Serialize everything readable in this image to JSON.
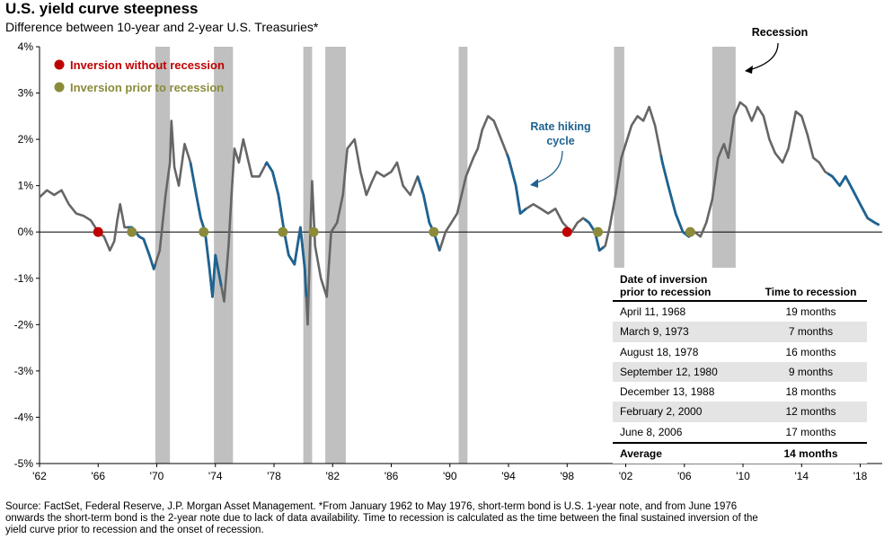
{
  "header": {
    "title": "U.S. yield curve steepness",
    "subtitle": "Difference between 10-year and 2-year U.S. Treasuries*"
  },
  "chart_data": {
    "type": "line",
    "x_unit": "year",
    "xlim": [
      1962,
      2019.5
    ],
    "ylim": [
      -5,
      4
    ],
    "y_ticks": [
      4,
      3,
      2,
      1,
      0,
      -1,
      -2,
      -3,
      -4,
      -5
    ],
    "y_tick_labels": [
      "4%",
      "3%",
      "2%",
      "1%",
      "0%",
      "-1%",
      "-2%",
      "-3%",
      "-4%",
      "-5%"
    ],
    "x_ticks": [
      1962,
      1966,
      1970,
      1974,
      1978,
      1982,
      1986,
      1990,
      1994,
      1998,
      2002,
      2006,
      2010,
      2014,
      2018
    ],
    "x_tick_labels": [
      "'62",
      "'66",
      "'70",
      "'74",
      "'78",
      "'82",
      "'86",
      "'90",
      "'94",
      "'98",
      "'02",
      "'06",
      "'10",
      "'14",
      "'18"
    ],
    "recessions": [
      [
        1969.9,
        1970.9
      ],
      [
        1973.9,
        1975.2
      ],
      [
        1980.0,
        1980.6
      ],
      [
        1981.5,
        1982.9
      ],
      [
        1990.6,
        1991.2
      ],
      [
        2001.2,
        2001.9
      ],
      [
        2007.9,
        2009.5
      ]
    ],
    "colors": {
      "line": "#666666",
      "hiking": "#1f6391",
      "recession": "#c0c0c0",
      "inversion_without": "#c00000",
      "inversion_prior": "#8b8b3a"
    },
    "series": [
      {
        "values": [
          [
            1962.0,
            0.75
          ],
          [
            1962.5,
            0.9
          ],
          [
            1963.0,
            0.8
          ],
          [
            1963.5,
            0.9
          ],
          [
            1964.0,
            0.6
          ],
          [
            1964.5,
            0.4
          ],
          [
            1965.0,
            0.35
          ],
          [
            1965.5,
            0.25
          ],
          [
            1966.0,
            0.0
          ],
          [
            1966.4,
            -0.1
          ],
          [
            1966.8,
            -0.4
          ],
          [
            1967.1,
            -0.2
          ],
          [
            1967.3,
            0.25
          ],
          [
            1967.5,
            0.6
          ],
          [
            1967.8,
            0.1
          ],
          [
            1968.3,
            0.1
          ],
          [
            1968.8,
            -0.1
          ],
          [
            1969.1,
            -0.15
          ],
          [
            1969.5,
            -0.5
          ],
          [
            1969.8,
            -0.8
          ],
          [
            1970.2,
            -0.4
          ],
          [
            1970.6,
            0.8
          ],
          [
            1970.9,
            1.5
          ],
          [
            1971.0,
            2.4
          ],
          [
            1971.2,
            1.4
          ],
          [
            1971.5,
            1.0
          ],
          [
            1971.9,
            1.9
          ],
          [
            1972.3,
            1.5
          ],
          [
            1972.7,
            0.8
          ],
          [
            1973.0,
            0.3
          ],
          [
            1973.3,
            0.0
          ],
          [
            1973.6,
            -0.8
          ],
          [
            1973.8,
            -1.4
          ],
          [
            1974.0,
            -0.5
          ],
          [
            1974.3,
            -1.0
          ],
          [
            1974.6,
            -1.5
          ],
          [
            1974.9,
            -0.3
          ],
          [
            1975.1,
            0.8
          ],
          [
            1975.3,
            1.8
          ],
          [
            1975.6,
            1.5
          ],
          [
            1975.9,
            2.0
          ],
          [
            1976.2,
            1.6
          ],
          [
            1976.5,
            1.2
          ],
          [
            1977.0,
            1.2
          ],
          [
            1977.5,
            1.5
          ],
          [
            1977.9,
            1.3
          ],
          [
            1978.3,
            0.8
          ],
          [
            1978.7,
            0.0
          ],
          [
            1979.0,
            -0.5
          ],
          [
            1979.4,
            -0.7
          ],
          [
            1979.8,
            0.1
          ],
          [
            1980.1,
            -0.8
          ],
          [
            1980.3,
            -2.0
          ],
          [
            1980.5,
            0.2
          ],
          [
            1980.6,
            1.1
          ],
          [
            1980.8,
            -0.3
          ],
          [
            1981.2,
            -1.0
          ],
          [
            1981.6,
            -1.4
          ],
          [
            1981.9,
            0.0
          ],
          [
            1982.3,
            0.2
          ],
          [
            1982.7,
            0.8
          ],
          [
            1983.0,
            1.8
          ],
          [
            1983.5,
            2.0
          ],
          [
            1983.9,
            1.3
          ],
          [
            1984.3,
            0.8
          ],
          [
            1984.7,
            1.1
          ],
          [
            1985.0,
            1.3
          ],
          [
            1985.5,
            1.2
          ],
          [
            1986.0,
            1.3
          ],
          [
            1986.4,
            1.5
          ],
          [
            1986.8,
            1.0
          ],
          [
            1987.3,
            0.8
          ],
          [
            1987.8,
            1.2
          ],
          [
            1988.2,
            0.8
          ],
          [
            1988.6,
            0.2
          ],
          [
            1988.9,
            0.0
          ],
          [
            1989.3,
            -0.4
          ],
          [
            1989.7,
            0.0
          ],
          [
            1990.1,
            0.2
          ],
          [
            1990.5,
            0.4
          ],
          [
            1990.8,
            0.8
          ],
          [
            1991.1,
            1.2
          ],
          [
            1991.6,
            1.6
          ],
          [
            1991.9,
            1.8
          ],
          [
            1992.2,
            2.2
          ],
          [
            1992.6,
            2.5
          ],
          [
            1993.0,
            2.4
          ],
          [
            1993.5,
            2.0
          ],
          [
            1994.0,
            1.6
          ],
          [
            1994.5,
            1.0
          ],
          [
            1994.8,
            0.4
          ],
          [
            1995.2,
            0.5
          ],
          [
            1995.7,
            0.6
          ],
          [
            1996.2,
            0.5
          ],
          [
            1996.7,
            0.4
          ],
          [
            1997.2,
            0.5
          ],
          [
            1997.7,
            0.2
          ],
          [
            1998.0,
            0.1
          ],
          [
            1998.3,
            0.0
          ],
          [
            1998.7,
            0.2
          ],
          [
            1999.1,
            0.3
          ],
          [
            1999.5,
            0.2
          ],
          [
            1999.9,
            0.0
          ],
          [
            2000.2,
            -0.4
          ],
          [
            2000.6,
            -0.3
          ],
          [
            2000.9,
            0.1
          ],
          [
            2001.3,
            0.8
          ],
          [
            2001.7,
            1.6
          ],
          [
            2002.0,
            1.9
          ],
          [
            2002.4,
            2.3
          ],
          [
            2002.8,
            2.5
          ],
          [
            2003.2,
            2.4
          ],
          [
            2003.6,
            2.7
          ],
          [
            2004.0,
            2.3
          ],
          [
            2004.5,
            1.5
          ],
          [
            2004.9,
            1.0
          ],
          [
            2005.4,
            0.4
          ],
          [
            2005.9,
            0.0
          ],
          [
            2006.3,
            -0.1
          ],
          [
            2006.7,
            0.0
          ],
          [
            2007.1,
            -0.1
          ],
          [
            2007.5,
            0.2
          ],
          [
            2007.9,
            0.7
          ],
          [
            2008.3,
            1.6
          ],
          [
            2008.7,
            1.9
          ],
          [
            2009.0,
            1.6
          ],
          [
            2009.4,
            2.5
          ],
          [
            2009.8,
            2.8
          ],
          [
            2010.2,
            2.7
          ],
          [
            2010.6,
            2.4
          ],
          [
            2011.0,
            2.7
          ],
          [
            2011.4,
            2.5
          ],
          [
            2011.8,
            2.0
          ],
          [
            2012.2,
            1.7
          ],
          [
            2012.7,
            1.5
          ],
          [
            2013.1,
            1.8
          ],
          [
            2013.6,
            2.6
          ],
          [
            2014.0,
            2.5
          ],
          [
            2014.4,
            2.1
          ],
          [
            2014.8,
            1.6
          ],
          [
            2015.2,
            1.5
          ],
          [
            2015.6,
            1.3
          ],
          [
            2016.1,
            1.2
          ],
          [
            2016.6,
            1.0
          ],
          [
            2017.0,
            1.2
          ],
          [
            2017.5,
            0.9
          ],
          [
            2018.0,
            0.6
          ],
          [
            2018.5,
            0.3
          ],
          [
            2019.0,
            0.2
          ],
          [
            2019.3,
            0.15
          ]
        ]
      }
    ],
    "hiking_segments": [
      [
        1968.0,
        1969.9
      ],
      [
        1972.3,
        1974.4
      ],
      [
        1977.4,
        1980.2
      ],
      [
        1987.8,
        1989.3
      ],
      [
        1993.9,
        1995.2
      ],
      [
        1999.2,
        2000.5
      ],
      [
        2004.4,
        2006.6
      ],
      [
        2015.8,
        2019.3
      ]
    ],
    "inversion_without_recession": [
      [
        1966.0,
        0.0
      ],
      [
        1998.0,
        0.0
      ]
    ],
    "inversion_prior_to_recession": [
      [
        1968.3,
        0.0
      ],
      [
        1973.2,
        0.0
      ],
      [
        1978.6,
        0.0
      ],
      [
        1980.7,
        0.0
      ],
      [
        1988.9,
        0.0
      ],
      [
        2000.1,
        0.0
      ],
      [
        2006.4,
        0.0
      ]
    ]
  },
  "legend": {
    "inversion_without": "Inversion without recession",
    "inversion_prior": "Inversion prior to recession"
  },
  "annotations": {
    "recession": "Recession",
    "hiking_line1": "Rate hiking",
    "hiking_line2": "cycle"
  },
  "table": {
    "col1_line1": "Date of inversion",
    "col1_line2": "prior to recession",
    "col2": "Time to recession",
    "rows": [
      {
        "date": "April 11, 1968",
        "time": "19 months"
      },
      {
        "date": "March 9, 1973",
        "time": "7 months"
      },
      {
        "date": "August 18, 1978",
        "time": "16 months"
      },
      {
        "date": "September 12, 1980",
        "time": "9 months"
      },
      {
        "date": "December 13, 1988",
        "time": "18 months"
      },
      {
        "date": "February 2, 2000",
        "time": "12 months"
      },
      {
        "date": "June 8, 2006",
        "time": "17 months"
      }
    ],
    "average_label": "Average",
    "average_value": "14 months"
  },
  "footer": {
    "source": "Source: FactSet, Federal Reserve, J.P. Morgan Asset Management. *From January 1962 to May 1976, short-term bond is U.S. 1-year note, and from June 1976 onwards the short-term bond is the 2-year note due to lack of data availability. Time to recession is calculated as the time between the final sustained inversion of the yield curve prior to recession and the onset of recession."
  }
}
